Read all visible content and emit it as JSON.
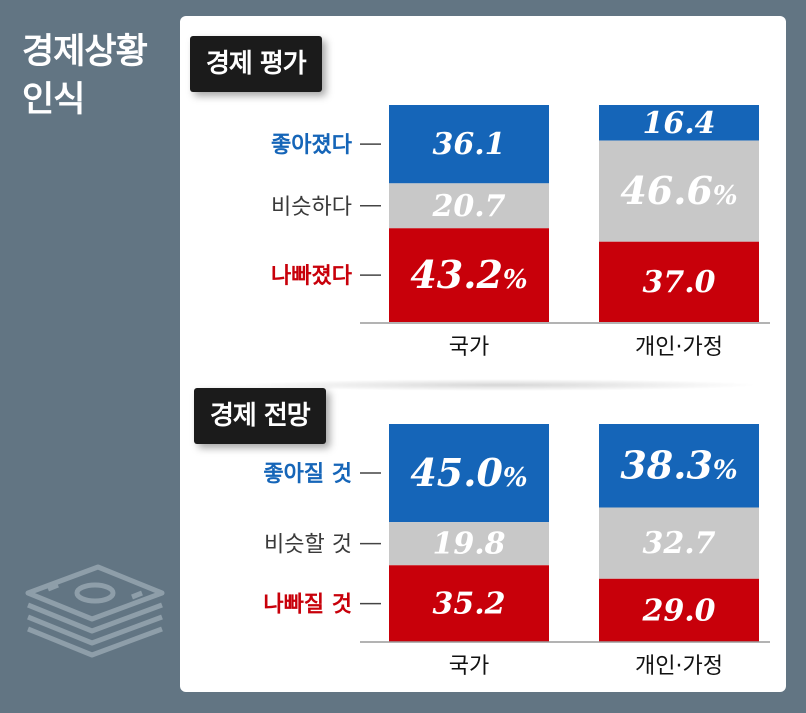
{
  "title": "경제상황 인식",
  "colors": {
    "background": "#627583",
    "better": "#1565b8",
    "same": "#c8c8c8",
    "worse": "#c8000a"
  },
  "icons": [
    "money-stack-icon"
  ],
  "chart_data": [
    {
      "type": "bar",
      "stacked": true,
      "title": "경제 평가",
      "categories": [
        "국가",
        "개인·가정"
      ],
      "series": [
        {
          "name": "좋아졌다",
          "values": [
            36.1,
            16.4
          ],
          "labels": [
            "36.1",
            "16.4"
          ]
        },
        {
          "name": "비슷하다",
          "values": [
            20.7,
            46.6
          ],
          "labels": [
            "20.7",
            "46.6%"
          ]
        },
        {
          "name": "나빠졌다",
          "values": [
            43.2,
            37.0
          ],
          "labels": [
            "43.2%",
            "37.0"
          ]
        }
      ],
      "ylim": [
        0,
        100
      ]
    },
    {
      "type": "bar",
      "stacked": true,
      "title": "경제 전망",
      "categories": [
        "국가",
        "개인·가정"
      ],
      "series": [
        {
          "name": "좋아질 것",
          "values": [
            45.0,
            38.3
          ],
          "labels": [
            "45.0%",
            "38.3%"
          ]
        },
        {
          "name": "비슷할 것",
          "values": [
            19.8,
            32.7
          ],
          "labels": [
            "19.8",
            "32.7"
          ]
        },
        {
          "name": "나빠질 것",
          "values": [
            35.2,
            29.0
          ],
          "labels": [
            "35.2",
            "29.0"
          ]
        }
      ],
      "ylim": [
        0,
        100
      ]
    }
  ]
}
